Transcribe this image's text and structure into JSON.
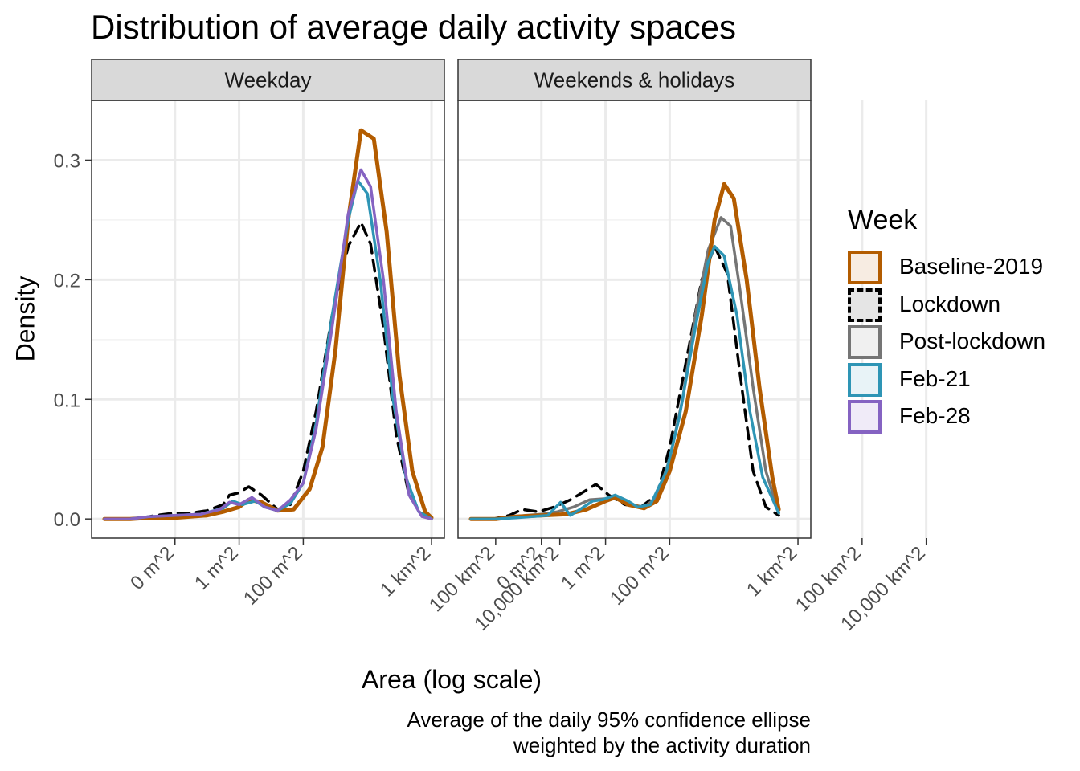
{
  "title": "Distribution of average daily activity spaces",
  "caption_lines": [
    "Average of the daily 95% confidence ellipse",
    "weighted by the activity duration"
  ],
  "legend": {
    "title": "Week",
    "items": [
      {
        "label": "Baseline-2019",
        "color": "#B35C00",
        "fill": "#F7ECE2",
        "dash": "solid"
      },
      {
        "label": "Lockdown",
        "color": "#000000",
        "fill": "#E5E5E5",
        "dash": "dashed"
      },
      {
        "label": "Post-lockdown",
        "color": "#757575",
        "fill": "#F0F0F0",
        "dash": "solid"
      },
      {
        "label": "Feb-21",
        "color": "#2E95B5",
        "fill": "#E8F3F7",
        "dash": "solid"
      },
      {
        "label": "Feb-28",
        "color": "#8563C2",
        "fill": "#F0EBF8",
        "dash": "solid"
      }
    ]
  },
  "chart_data": {
    "type": "line",
    "xlabel": "Area (log scale)",
    "ylabel": "Density",
    "x_scale": "log10",
    "x_ticks": [
      {
        "value": 0.01,
        "label": "0 m^2"
      },
      {
        "value": 1,
        "label": "1 m^2"
      },
      {
        "value": 100,
        "label": "100 m^2"
      },
      {
        "value": 1000000,
        "label": "1 km^2"
      },
      {
        "value": 100000000,
        "label": "100 km^2"
      },
      {
        "value": 10000000000,
        "label": "10,000 km^2"
      }
    ],
    "y_ticks": [
      0.0,
      0.1,
      0.2,
      0.3
    ],
    "y_tick_labels": [
      "0.0",
      "0.1",
      "0.2",
      "0.3"
    ],
    "ylim": [
      -0.016,
      0.35
    ],
    "grid": true,
    "legend_position": "right",
    "panels": [
      {
        "label": "Weekday",
        "series": [
          {
            "name": "Lockdown",
            "points": [
              [
                -4.2,
                0
              ],
              [
                -3.5,
                0
              ],
              [
                -3.0,
                0.001
              ],
              [
                -2.6,
                0.003
              ],
              [
                -2.0,
                0.005
              ],
              [
                -1.5,
                0.005
              ],
              [
                -1.0,
                0.007
              ],
              [
                -0.5,
                0.012
              ],
              [
                -0.3,
                0.02
              ],
              [
                0,
                0.022
              ],
              [
                0.3,
                0.027
              ],
              [
                0.7,
                0.02
              ],
              [
                1.2,
                0.008
              ],
              [
                1.6,
                0.012
              ],
              [
                2.0,
                0.04
              ],
              [
                2.4,
                0.09
              ],
              [
                2.9,
                0.17
              ],
              [
                3.4,
                0.228
              ],
              [
                3.8,
                0.248
              ],
              [
                4.1,
                0.23
              ],
              [
                4.5,
                0.16
              ],
              [
                4.9,
                0.07
              ],
              [
                5.3,
                0.02
              ],
              [
                5.7,
                0.003
              ],
              [
                6.0,
                0
              ]
            ]
          },
          {
            "name": "Baseline-2019",
            "points": [
              [
                -4.2,
                0
              ],
              [
                -3.4,
                0
              ],
              [
                -2.8,
                0.001
              ],
              [
                -2.0,
                0.001
              ],
              [
                -1.0,
                0.003
              ],
              [
                -0.5,
                0.006
              ],
              [
                0,
                0.01
              ],
              [
                0.3,
                0.016
              ],
              [
                0.7,
                0.014
              ],
              [
                1.2,
                0.007
              ],
              [
                1.7,
                0.008
              ],
              [
                2.2,
                0.025
              ],
              [
                2.6,
                0.06
              ],
              [
                3.0,
                0.14
              ],
              [
                3.4,
                0.25
              ],
              [
                3.8,
                0.325
              ],
              [
                4.2,
                0.318
              ],
              [
                4.6,
                0.24
              ],
              [
                5.0,
                0.12
              ],
              [
                5.4,
                0.04
              ],
              [
                5.8,
                0.006
              ],
              [
                6.0,
                0.001
              ]
            ]
          },
          {
            "name": "Feb-21",
            "points": [
              [
                -4.2,
                0
              ],
              [
                -3.4,
                0
              ],
              [
                -2.8,
                0.002
              ],
              [
                -2.0,
                0.003
              ],
              [
                -1.2,
                0.004
              ],
              [
                -0.5,
                0.009
              ],
              [
                -0.2,
                0.015
              ],
              [
                0.1,
                0.012
              ],
              [
                0.5,
                0.015
              ],
              [
                0.8,
                0.01
              ],
              [
                1.2,
                0.007
              ],
              [
                1.6,
                0.013
              ],
              [
                2.0,
                0.03
              ],
              [
                2.4,
                0.08
              ],
              [
                2.9,
                0.17
              ],
              [
                3.4,
                0.25
              ],
              [
                3.7,
                0.283
              ],
              [
                4.0,
                0.272
              ],
              [
                4.4,
                0.2
              ],
              [
                4.8,
                0.1
              ],
              [
                5.2,
                0.035
              ],
              [
                5.6,
                0.006
              ],
              [
                6.0,
                0
              ]
            ]
          },
          {
            "name": "Feb-28",
            "points": [
              [
                -4.2,
                0
              ],
              [
                -3.4,
                0
              ],
              [
                -2.8,
                0.002
              ],
              [
                -2.0,
                0.003
              ],
              [
                -1.2,
                0.004
              ],
              [
                -0.6,
                0.008
              ],
              [
                -0.3,
                0.014
              ],
              [
                0,
                0.012
              ],
              [
                0.4,
                0.018
              ],
              [
                0.8,
                0.01
              ],
              [
                1.2,
                0.007
              ],
              [
                1.6,
                0.016
              ],
              [
                2.0,
                0.03
              ],
              [
                2.4,
                0.075
              ],
              [
                2.9,
                0.16
              ],
              [
                3.4,
                0.255
              ],
              [
                3.8,
                0.292
              ],
              [
                4.1,
                0.278
              ],
              [
                4.5,
                0.2
              ],
              [
                4.9,
                0.09
              ],
              [
                5.3,
                0.02
              ],
              [
                5.7,
                0.002
              ],
              [
                6.0,
                0
              ]
            ]
          }
        ]
      },
      {
        "label": "Weekends & holidays",
        "series": [
          {
            "name": "Lockdown",
            "points": [
              [
                -4.2,
                0
              ],
              [
                -3.5,
                0
              ],
              [
                -3.0,
                0.003
              ],
              [
                -2.6,
                0.008
              ],
              [
                -2.1,
                0.006
              ],
              [
                -1.6,
                0.01
              ],
              [
                -1.1,
                0.016
              ],
              [
                -0.6,
                0.024
              ],
              [
                -0.3,
                0.029
              ],
              [
                0.1,
                0.02
              ],
              [
                0.6,
                0.012
              ],
              [
                1.1,
                0.01
              ],
              [
                1.6,
                0.02
              ],
              [
                2.0,
                0.06
              ],
              [
                2.5,
                0.13
              ],
              [
                3.0,
                0.2
              ],
              [
                3.4,
                0.228
              ],
              [
                3.8,
                0.205
              ],
              [
                4.2,
                0.12
              ],
              [
                4.6,
                0.04
              ],
              [
                5.0,
                0.01
              ],
              [
                5.4,
                0.003
              ]
            ]
          },
          {
            "name": "Post-lockdown",
            "points": [
              [
                -4.2,
                0
              ],
              [
                -3.4,
                0
              ],
              [
                -3.0,
                0.001
              ],
              [
                -2.5,
                0.003
              ],
              [
                -2.0,
                0.004
              ],
              [
                -1.5,
                0.006
              ],
              [
                -1.0,
                0.01
              ],
              [
                -0.5,
                0.016
              ],
              [
                0,
                0.017
              ],
              [
                0.4,
                0.018
              ],
              [
                0.8,
                0.012
              ],
              [
                1.2,
                0.01
              ],
              [
                1.6,
                0.018
              ],
              [
                2.0,
                0.05
              ],
              [
                2.4,
                0.1
              ],
              [
                2.8,
                0.17
              ],
              [
                3.2,
                0.225
              ],
              [
                3.6,
                0.252
              ],
              [
                3.9,
                0.245
              ],
              [
                4.2,
                0.19
              ],
              [
                4.6,
                0.11
              ],
              [
                5.0,
                0.04
              ],
              [
                5.4,
                0.005
              ]
            ]
          },
          {
            "name": "Baseline-2019",
            "points": [
              [
                -4.2,
                0
              ],
              [
                -3.4,
                0
              ],
              [
                -2.8,
                0.002
              ],
              [
                -2.0,
                0.003
              ],
              [
                -1.2,
                0.004
              ],
              [
                -0.6,
                0.008
              ],
              [
                0,
                0.015
              ],
              [
                0.3,
                0.018
              ],
              [
                0.7,
                0.012
              ],
              [
                1.2,
                0.009
              ],
              [
                1.6,
                0.015
              ],
              [
                2.0,
                0.04
              ],
              [
                2.5,
                0.09
              ],
              [
                3.0,
                0.17
              ],
              [
                3.4,
                0.25
              ],
              [
                3.7,
                0.28
              ],
              [
                4.0,
                0.268
              ],
              [
                4.4,
                0.2
              ],
              [
                4.8,
                0.11
              ],
              [
                5.2,
                0.035
              ],
              [
                5.4,
                0.008
              ]
            ]
          },
          {
            "name": "Feb-21",
            "points": [
              [
                -4.2,
                0
              ],
              [
                -3.4,
                0
              ],
              [
                -2.8,
                0.001
              ],
              [
                -2.3,
                0.002
              ],
              [
                -1.8,
                0.003
              ],
              [
                -1.4,
                0.014
              ],
              [
                -1.1,
                0.003
              ],
              [
                -0.8,
                0.008
              ],
              [
                -0.4,
                0.015
              ],
              [
                -0.1,
                0.016
              ],
              [
                0.3,
                0.02
              ],
              [
                0.7,
                0.015
              ],
              [
                1.0,
                0.01
              ],
              [
                1.4,
                0.012
              ],
              [
                1.9,
                0.04
              ],
              [
                2.3,
                0.085
              ],
              [
                2.8,
                0.16
              ],
              [
                3.2,
                0.215
              ],
              [
                3.4,
                0.228
              ],
              [
                3.7,
                0.22
              ],
              [
                4.1,
                0.17
              ],
              [
                4.5,
                0.09
              ],
              [
                4.9,
                0.035
              ],
              [
                5.4,
                0.005
              ]
            ]
          }
        ]
      }
    ]
  }
}
